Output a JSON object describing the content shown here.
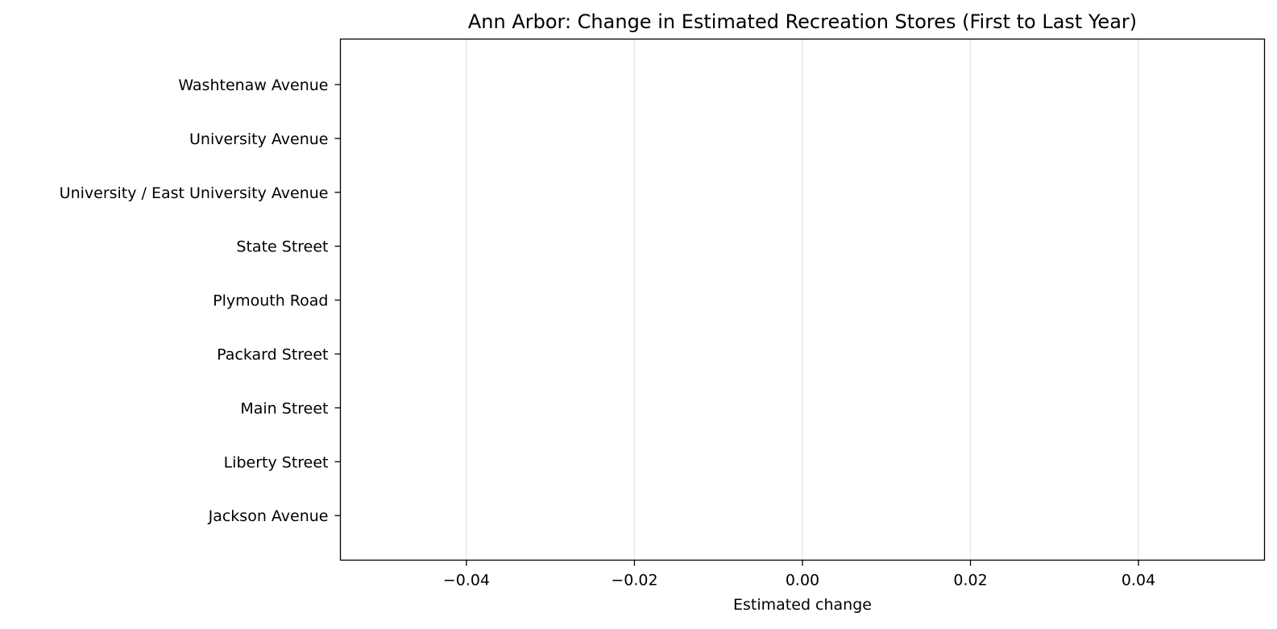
{
  "chart_data": {
    "type": "bar",
    "orientation": "horizontal",
    "title": "Ann Arbor: Change in Estimated Recreation Stores (First to Last Year)",
    "xlabel": "Estimated change",
    "ylabel": "",
    "categories": [
      "Washtenaw Avenue",
      "University Avenue",
      "University / East University Avenue",
      "State Street",
      "Plymouth Road",
      "Packard Street",
      "Main Street",
      "Liberty Street",
      "Jackson Avenue"
    ],
    "values": [
      0,
      0,
      0,
      0,
      0,
      0,
      0,
      0,
      0
    ],
    "xlim": [
      -0.055,
      0.055
    ],
    "xticks": [
      -0.04,
      -0.02,
      0.0,
      0.02,
      0.04
    ],
    "xtick_labels": [
      "−0.04",
      "−0.02",
      "0.00",
      "0.02",
      "0.04"
    ],
    "grid": "x-axis vertical gridlines",
    "legend": "none"
  }
}
